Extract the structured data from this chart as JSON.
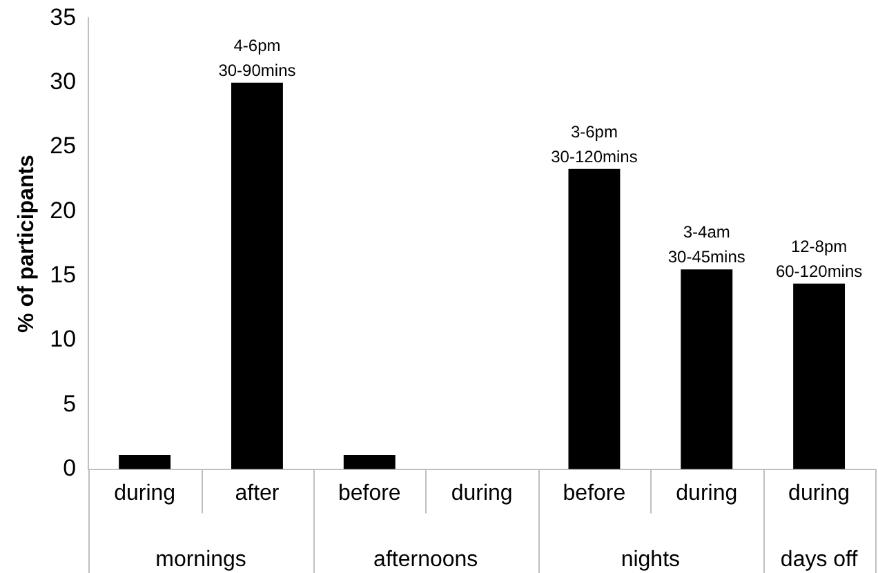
{
  "chart_data": {
    "type": "bar",
    "ylabel": "% of participants",
    "categories": [
      "during",
      "after",
      "before",
      "during",
      "before",
      "during",
      "during"
    ],
    "values": [
      1.1,
      30,
      1.1,
      0,
      23.3,
      15.5,
      14.4
    ],
    "value_labels": [
      null,
      "4-6pm\n30-90mins",
      null,
      null,
      "3-6pm\n30-120mins",
      "3-4am\n30-45mins",
      "12-8pm\n60-120mins"
    ],
    "color": "#000000",
    "annotations": [
      "mornings",
      "afternoons",
      "nights",
      "days off"
    ],
    "ylim": [
      0,
      35
    ],
    "yticks": [
      0,
      5,
      10,
      15,
      20,
      25,
      30,
      35
    ],
    "grid": false,
    "legend": false
  }
}
